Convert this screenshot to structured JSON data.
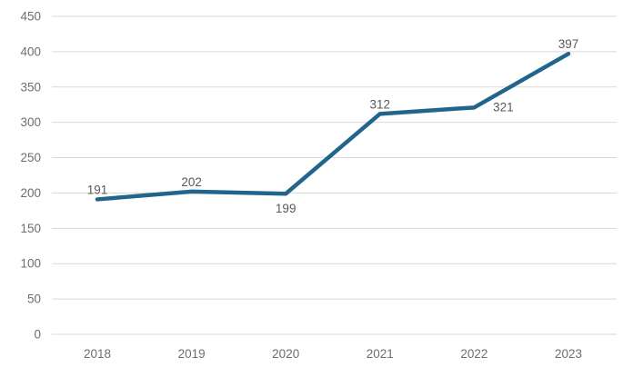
{
  "chart_data": {
    "type": "line",
    "title": "",
    "xlabel": "",
    "ylabel": "",
    "categories": [
      "2018",
      "2019",
      "2020",
      "2021",
      "2022",
      "2023"
    ],
    "series": [
      {
        "name": "value",
        "values": [
          191,
          202,
          199,
          312,
          321,
          397
        ]
      }
    ],
    "data_labels": [
      "191",
      "202",
      "199",
      "312",
      "321",
      "397"
    ],
    "label_positions": [
      "above",
      "above",
      "below",
      "above",
      "right",
      "above"
    ],
    "ylim": [
      0,
      450
    ],
    "ytick_step": 50,
    "yticks": [
      0,
      50,
      100,
      150,
      200,
      250,
      300,
      350,
      400,
      450
    ],
    "grid": true,
    "legend_position": "none",
    "line_color": "#21658C",
    "grid_color": "#D9D9D9",
    "axis_text_color": "#6E6E6E",
    "data_label_color": "#595959",
    "background_color": "#FFFFFF"
  }
}
